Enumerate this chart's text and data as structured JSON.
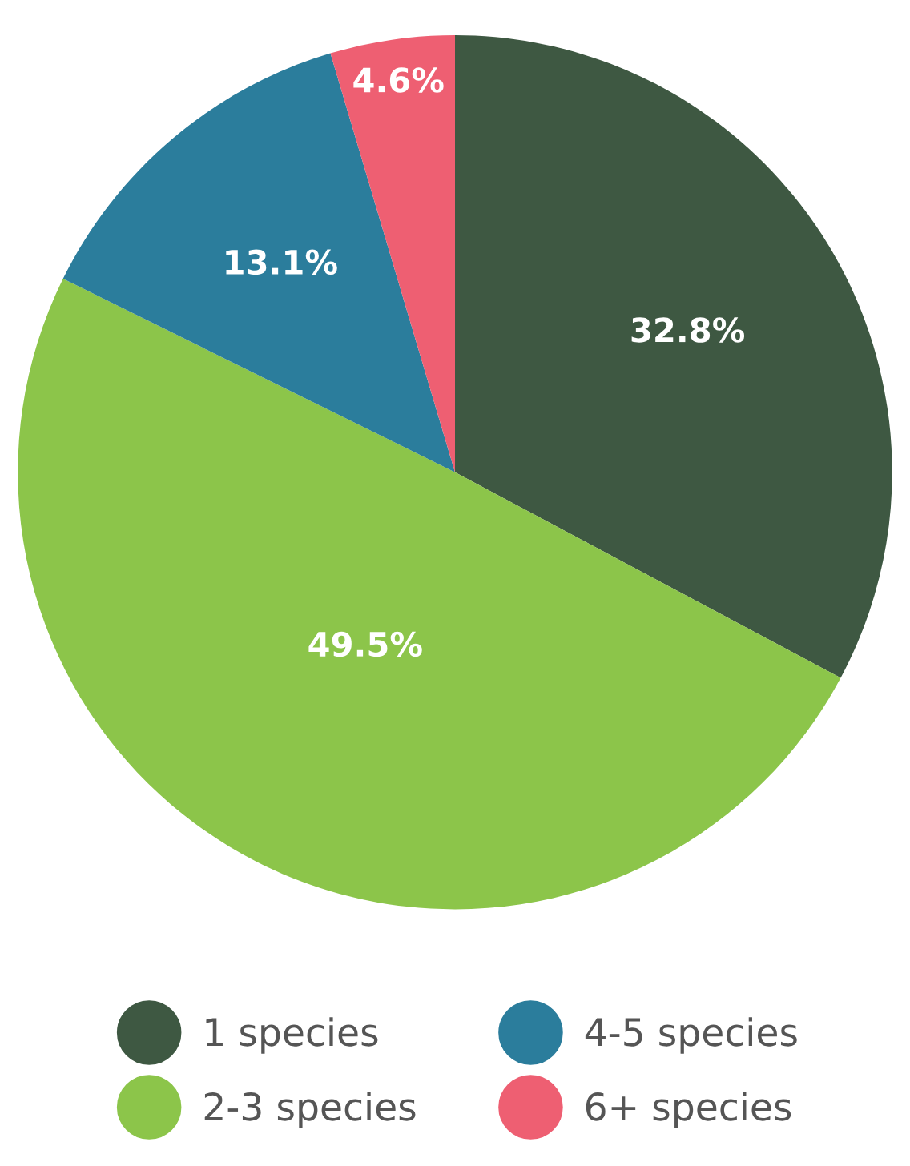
{
  "chart_data": {
    "type": "pie",
    "categories": [
      "1 species",
      "2-3 species",
      "4-5 species",
      "6+ species"
    ],
    "values": [
      32.8,
      49.5,
      13.1,
      4.6
    ],
    "colors": [
      "#3e5842",
      "#8cc54a",
      "#2b7d9c",
      "#ee5f72"
    ],
    "value_labels": [
      "32.8%",
      "49.5%",
      "13.1%",
      "4.6%"
    ],
    "legend": "bottom"
  }
}
